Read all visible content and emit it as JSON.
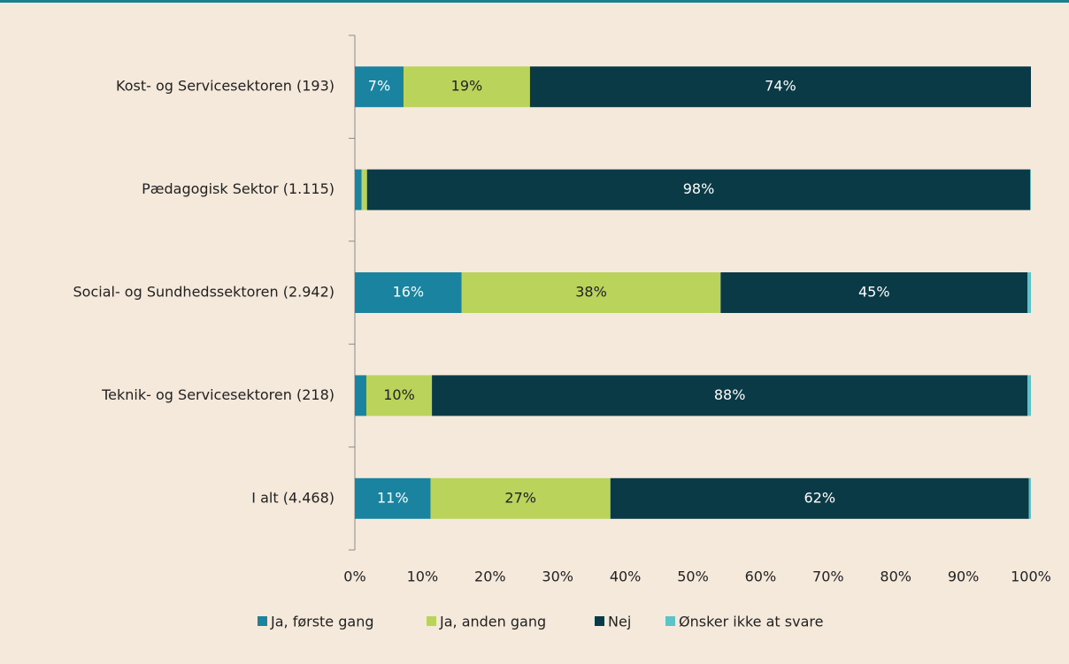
{
  "chart_data": {
    "type": "stacked_barh",
    "categories": [
      "Kost- og Servicesektoren (193)",
      "Pædagogisk Sektor (1.115)",
      "Social- og Sundhedssektoren (2.942)",
      "Teknik- og Servicesektoren (218)",
      "I alt (4.468)"
    ],
    "series": [
      {
        "name": "Ja, første gang",
        "color": "#1a84a0",
        "values": [
          7.2,
          1.0,
          15.8,
          1.7,
          11.2
        ],
        "value_labels": [
          "7%",
          null,
          "16%",
          null,
          "11%"
        ]
      },
      {
        "name": "Ja, anden gang",
        "color": "#b9d35b",
        "values": [
          18.7,
          0.8,
          38.3,
          9.7,
          26.6
        ],
        "value_labels": [
          "19%",
          null,
          "38%",
          "10%",
          "27%"
        ]
      },
      {
        "name": "Nej",
        "color": "#0b3a47",
        "values": [
          74.1,
          98.1,
          45.4,
          88.1,
          61.9
        ],
        "value_labels": [
          "74%",
          "98%",
          "45%",
          "88%",
          "62%"
        ]
      },
      {
        "name": "Ønsker ikke at svare",
        "color": "#5cc3c8",
        "values": [
          0.0,
          0.1,
          0.5,
          0.5,
          0.3
        ],
        "value_labels": [
          null,
          null,
          null,
          null,
          null
        ]
      }
    ],
    "xlim": [
      0,
      100
    ],
    "xticks": [
      {
        "value": 0,
        "label": "0%"
      },
      {
        "value": 10,
        "label": "10%"
      },
      {
        "value": 20,
        "label": "20%"
      },
      {
        "value": 30,
        "label": "30%"
      },
      {
        "value": 40,
        "label": "40%"
      },
      {
        "value": 50,
        "label": "50%"
      },
      {
        "value": 60,
        "label": "60%"
      },
      {
        "value": 70,
        "label": "70%"
      },
      {
        "value": 80,
        "label": "80%"
      },
      {
        "value": 90,
        "label": "90%"
      },
      {
        "value": 100,
        "label": "100%"
      }
    ],
    "legend": "bottom"
  }
}
